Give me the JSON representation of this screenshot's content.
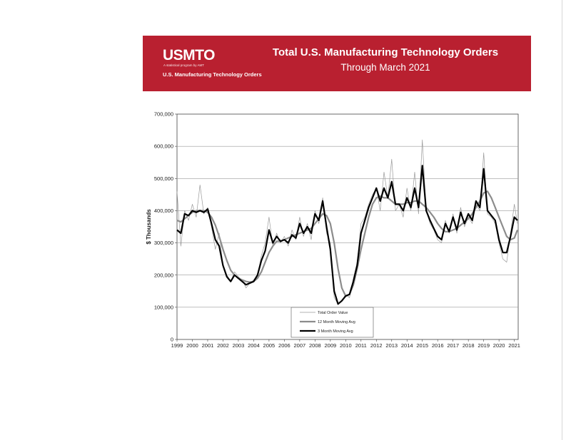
{
  "banner": {
    "logo": "USMTO",
    "logo_subtitle": "A statistical program by AMT",
    "logo_tagline": "U.S. Manufacturing Technology Orders",
    "title": "Total U.S. Manufacturing Technology Orders",
    "subtitle": "Through March 2021",
    "background_color": "#b92030"
  },
  "chart_data": {
    "type": "line",
    "title": "Total U.S. Manufacturing Technology Orders",
    "subtitle": "Through March 2021",
    "xlabel": "",
    "ylabel": "$ Thousands",
    "xlim": [
      1999,
      2021.25
    ],
    "ylim": [
      0,
      700000
    ],
    "y_ticks": [
      0,
      100000,
      200000,
      300000,
      400000,
      500000,
      600000,
      700000
    ],
    "y_tick_labels": [
      "0",
      "100,000",
      "200,000",
      "300,000",
      "400,000",
      "500,000",
      "600,000",
      "700,000"
    ],
    "x_tick_labels": [
      "1999",
      "2000",
      "2001",
      "2002",
      "2003",
      "2004",
      "2005",
      "2006",
      "2007",
      "2008",
      "2009",
      "2010",
      "2011",
      "2012",
      "2013",
      "2014",
      "2015",
      "2016",
      "2017",
      "2018",
      "2019",
      "2020",
      "2021"
    ],
    "grid": true,
    "legend_position": "bottom-center",
    "x": [
      1999.0,
      1999.25,
      1999.5,
      1999.75,
      2000.0,
      2000.25,
      2000.5,
      2000.75,
      2001.0,
      2001.25,
      2001.5,
      2001.75,
      2002.0,
      2002.25,
      2002.5,
      2002.75,
      2003.0,
      2003.25,
      2003.5,
      2003.75,
      2004.0,
      2004.25,
      2004.5,
      2004.75,
      2005.0,
      2005.25,
      2005.5,
      2005.75,
      2006.0,
      2006.25,
      2006.5,
      2006.75,
      2007.0,
      2007.25,
      2007.5,
      2007.75,
      2008.0,
      2008.25,
      2008.5,
      2008.75,
      2009.0,
      2009.25,
      2009.5,
      2009.75,
      2010.0,
      2010.25,
      2010.5,
      2010.75,
      2011.0,
      2011.25,
      2011.5,
      2011.75,
      2012.0,
      2012.25,
      2012.5,
      2012.75,
      2013.0,
      2013.25,
      2013.5,
      2013.75,
      2014.0,
      2014.25,
      2014.5,
      2014.75,
      2015.0,
      2015.25,
      2015.5,
      2015.75,
      2016.0,
      2016.25,
      2016.5,
      2016.75,
      2017.0,
      2017.25,
      2017.5,
      2017.75,
      2018.0,
      2018.25,
      2018.5,
      2018.75,
      2019.0,
      2019.25,
      2019.5,
      2019.75,
      2020.0,
      2020.25,
      2020.5,
      2020.75,
      2021.0,
      2021.2
    ],
    "series": [
      {
        "name": "Total Order Value",
        "color": "#9a9a9a",
        "values": [
          460000,
          290000,
          400000,
          370000,
          420000,
          380000,
          480000,
          390000,
          410000,
          350000,
          280000,
          330000,
          230000,
          200000,
          180000,
          210000,
          195000,
          185000,
          160000,
          175000,
          185000,
          200000,
          260000,
          300000,
          380000,
          290000,
          330000,
          300000,
          320000,
          290000,
          340000,
          310000,
          380000,
          320000,
          360000,
          310000,
          400000,
          360000,
          440000,
          330000,
          300000,
          130000,
          110000,
          120000,
          140000,
          130000,
          190000,
          240000,
          360000,
          380000,
          420000,
          450000,
          470000,
          400000,
          520000,
          440000,
          560000,
          400000,
          420000,
          380000,
          470000,
          400000,
          520000,
          390000,
          620000,
          400000,
          360000,
          340000,
          310000,
          300000,
          370000,
          330000,
          390000,
          330000,
          410000,
          350000,
          380000,
          360000,
          420000,
          400000,
          580000,
          390000,
          380000,
          360000,
          300000,
          250000,
          240000,
          330000,
          420000,
          360000
        ]
      },
      {
        "name": "12 Month Moving Avg",
        "color": "#8c8c8c",
        "values": [
          370000,
          365000,
          375000,
          385000,
          395000,
          400000,
          400000,
          400000,
          395000,
          380000,
          355000,
          320000,
          280000,
          245000,
          215000,
          200000,
          190000,
          185000,
          180000,
          178000,
          180000,
          190000,
          210000,
          240000,
          270000,
          290000,
          305000,
          305000,
          310000,
          315000,
          320000,
          325000,
          330000,
          335000,
          340000,
          345000,
          360000,
          375000,
          390000,
          385000,
          360000,
          300000,
          220000,
          160000,
          135000,
          140000,
          170000,
          220000,
          280000,
          330000,
          380000,
          420000,
          440000,
          445000,
          440000,
          440000,
          430000,
          420000,
          420000,
          420000,
          425000,
          425000,
          430000,
          430000,
          420000,
          410000,
          395000,
          380000,
          360000,
          345000,
          335000,
          335000,
          340000,
          345000,
          355000,
          365000,
          375000,
          390000,
          410000,
          430000,
          455000,
          460000,
          440000,
          410000,
          380000,
          350000,
          320000,
          310000,
          315000,
          340000
        ]
      },
      {
        "name": "3 Month Moving Avg",
        "color": "#000000",
        "values": [
          340000,
          330000,
          390000,
          385000,
          400000,
          395000,
          400000,
          395000,
          405000,
          360000,
          310000,
          290000,
          230000,
          195000,
          180000,
          200000,
          190000,
          180000,
          170000,
          175000,
          180000,
          200000,
          245000,
          275000,
          340000,
          300000,
          320000,
          305000,
          310000,
          300000,
          325000,
          315000,
          360000,
          330000,
          350000,
          330000,
          390000,
          370000,
          430000,
          350000,
          280000,
          150000,
          110000,
          120000,
          135000,
          140000,
          180000,
          230000,
          330000,
          370000,
          410000,
          440000,
          470000,
          430000,
          470000,
          440000,
          490000,
          420000,
          420000,
          400000,
          440000,
          410000,
          470000,
          410000,
          540000,
          400000,
          370000,
          345000,
          320000,
          310000,
          360000,
          335000,
          380000,
          340000,
          395000,
          360000,
          390000,
          370000,
          430000,
          410000,
          530000,
          400000,
          385000,
          370000,
          310000,
          270000,
          270000,
          320000,
          380000,
          370000
        ]
      }
    ]
  }
}
